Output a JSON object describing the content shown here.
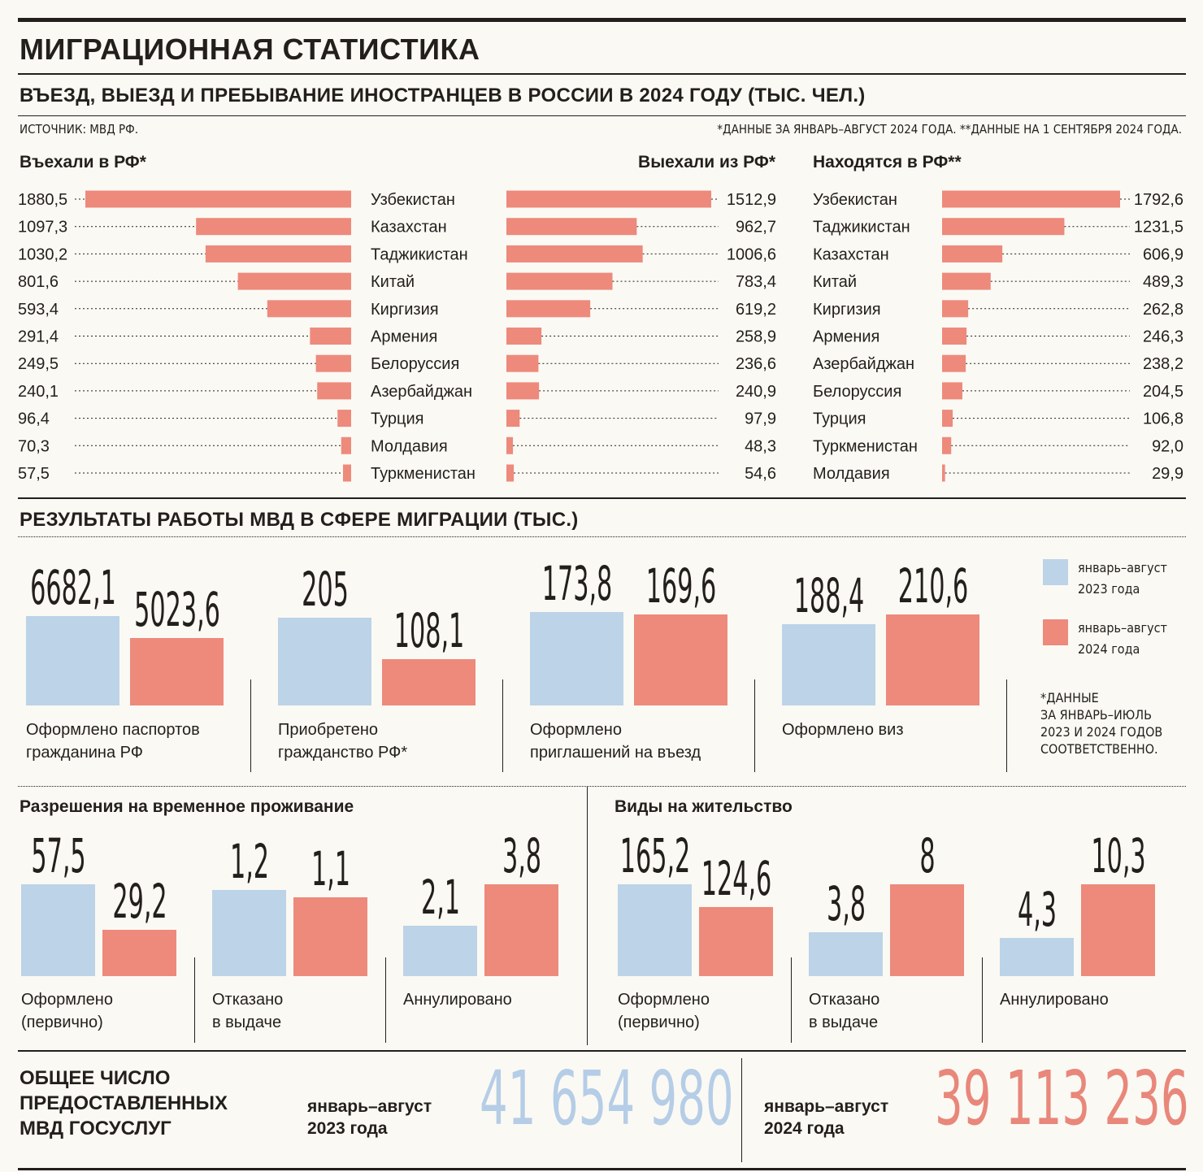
{
  "title": "МИГРАЦИОННАЯ СТАТИСТИКА",
  "subtitle": "ВЪЕЗД, ВЫЕЗД И ПРЕБЫВАНИЕ ИНОСТРАНЦЕВ В РОССИИ В 2024 ГОДУ (ТЫС. ЧЕЛ.)",
  "source": "ИСТОЧНИК: МВД РФ.",
  "footnotes": "*ДАННЫЕ ЗА ЯНВАРЬ–АВГУСТ 2024 ГОДА.  **ДАННЫЕ НА 1 СЕНТЯБРЯ 2024 ГОДА.",
  "colors": {
    "blue": "#bcd3e8",
    "red": "#ed8a7c",
    "text": "#231f1c",
    "blue_text": "#b5cde6",
    "red_text": "#e8877a"
  },
  "section2_title": "РЕЗУЛЬТАТЫ РАБОТЫ МВД В СФЕРЕ МИГРАЦИИ (ТЫС.)",
  "legend": {
    "y2023": "январь–август\n2023 года",
    "y2024": "январь–август\n2024 года"
  },
  "note_star": "*ДАННЫЕ\n ЗА ЯНВАРЬ–ИЮЛЬ\n 2023 И 2024 ГОДОВ\n СООТВЕТСТВЕННО.",
  "rvp_title": "Разрешения на временное проживание",
  "vnzh_title": "Виды на жительство",
  "totals": {
    "heading": "ОБЩЕЕ ЧИСЛО\nПРЕДОСТАВЛЕННЫХ\nМВД ГОСУСЛУГ",
    "p2023": "январь–август\n2023 года",
    "v2023": "41 654 980",
    "p2024": "январь–август\n2024 года",
    "v2024": "39 113 236"
  },
  "chart_data": [
    {
      "type": "bar",
      "title": "Въехали в РФ*",
      "categories": [
        "Узбекистан",
        "Казахстан",
        "Таджикистан",
        "Китай",
        "Киргизия",
        "Армения",
        "Белоруссия",
        "Азербайджан",
        "Турция",
        "Молдавия",
        "Туркменистан"
      ],
      "values": [
        1880.5,
        1097.3,
        1030.2,
        801.6,
        593.4,
        291.4,
        249.5,
        240.1,
        96.4,
        70.3,
        57.5
      ],
      "labels": [
        "1880,5",
        "1097,3",
        "1030,2",
        "801,6",
        "593,4",
        "291,4",
        "249,5",
        "240,1",
        "96,4",
        "70,3",
        "57,5"
      ]
    },
    {
      "type": "bar",
      "title": "Выехали из РФ*",
      "categories": [
        "Узбекистан",
        "Казахстан",
        "Таджикистан",
        "Китай",
        "Киргизия",
        "Армения",
        "Белоруссия",
        "Азербайджан",
        "Турция",
        "Молдавия",
        "Туркменистан"
      ],
      "values": [
        1512.9,
        962.7,
        1006.6,
        783.4,
        619.2,
        258.9,
        236.6,
        240.9,
        97.9,
        48.3,
        54.6
      ],
      "labels": [
        "1512,9",
        "962,7",
        "1006,6",
        "783,4",
        "619,2",
        "258,9",
        "236,6",
        "240,9",
        "97,9",
        "48,3",
        "54,6"
      ]
    },
    {
      "type": "bar",
      "title": "Находятся в РФ**",
      "categories": [
        "Узбекистан",
        "Таджикистан",
        "Казахстан",
        "Китай",
        "Киргизия",
        "Армения",
        "Азербайджан",
        "Белоруссия",
        "Турция",
        "Туркменистан",
        "Молдавия"
      ],
      "values": [
        1792.6,
        1231.5,
        606.9,
        489.3,
        262.8,
        246.3,
        238.2,
        204.5,
        106.8,
        92.0,
        29.9
      ],
      "labels": [
        "1792,6",
        "1231,5",
        "606,9",
        "489,3",
        "262,8",
        "246,3",
        "238,2",
        "204,5",
        "106,8",
        "92,0",
        "29,9"
      ]
    },
    {
      "type": "bar",
      "series": [
        {
          "name": "январь–август 2023 года"
        },
        {
          "name": "январь–август 2024 года"
        }
      ],
      "groups": [
        {
          "caption": "Оформлено паспортов\nгражданина РФ",
          "v2023": 6682.1,
          "v2024": 5023.6,
          "l2023": "6682,1",
          "l2024": "5023,6"
        },
        {
          "caption": "Приобретено\nгражданство РФ*",
          "v2023": 205,
          "v2024": 108.1,
          "l2023": "205",
          "l2024": "108,1"
        },
        {
          "caption": "Оформлено\nприглашений на въезд",
          "v2023": 173.8,
          "v2024": 169.6,
          "l2023": "173,8",
          "l2024": "169,6"
        },
        {
          "caption": "Оформлено виз",
          "v2023": 188.4,
          "v2024": 210.6,
          "l2023": "188,4",
          "l2024": "210,6"
        }
      ]
    },
    {
      "type": "bar",
      "title": "Разрешения на временное проживание",
      "groups": [
        {
          "caption": "Оформлено\n(первично)",
          "v2023": 57.5,
          "v2024": 29.2,
          "l2023": "57,5",
          "l2024": "29,2"
        },
        {
          "caption": "Отказано\nв выдаче",
          "v2023": 1.2,
          "v2024": 1.1,
          "l2023": "1,2",
          "l2024": "1,1"
        },
        {
          "caption": "Аннулировано",
          "v2023": 2.1,
          "v2024": 3.8,
          "l2023": "2,1",
          "l2024": "3,8"
        }
      ]
    },
    {
      "type": "bar",
      "title": "Виды на жительство",
      "groups": [
        {
          "caption": "Оформлено\n(первично)",
          "v2023": 165.2,
          "v2024": 124.6,
          "l2023": "165,2",
          "l2024": "124,6"
        },
        {
          "caption": "Отказано\nв выдаче",
          "v2023": 3.8,
          "v2024": 8,
          "l2023": "3,8",
          "l2024": "8"
        },
        {
          "caption": "Аннулировано",
          "v2023": 4.3,
          "v2024": 10.3,
          "l2023": "4,3",
          "l2024": "10,3"
        }
      ]
    }
  ]
}
